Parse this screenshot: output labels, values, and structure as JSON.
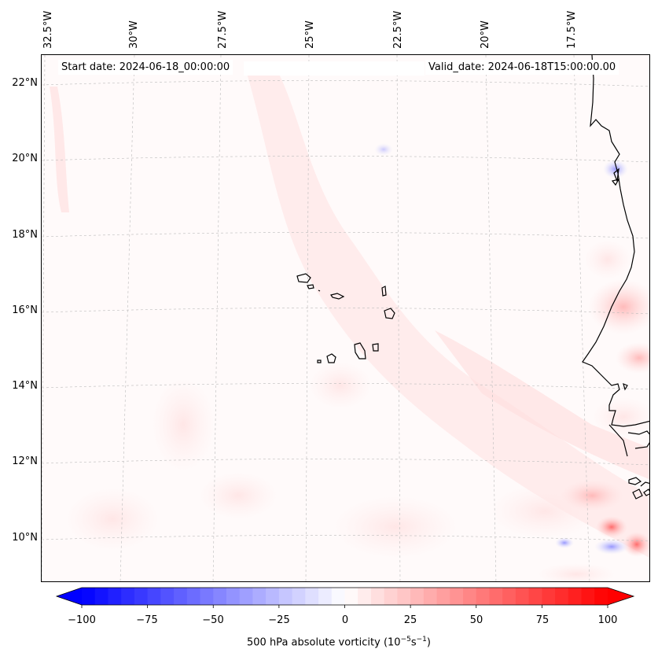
{
  "map": {
    "start_date_text": "Start date: 2024-06-18_00:00:00",
    "valid_date_text": "Valid_date: 2024-06-18T15:00:00.00",
    "lon_labels": [
      "32.5°W",
      "30°W",
      "27.5°W",
      "25°W",
      "22.5°W",
      "20°W",
      "17.5°W"
    ],
    "lat_labels": [
      "22°N",
      "20°N",
      "18°N",
      "16°N",
      "14°N",
      "12°N",
      "10°N"
    ],
    "colorbar": {
      "label": "500 hPa absolute vorticity (10",
      "label_exp1": "−5",
      "label_mid": "s",
      "label_exp2": "−1",
      "label_end": ")",
      "tick_labels": [
        "−100",
        "−75",
        "−50",
        "−25",
        "0",
        "25",
        "50",
        "75",
        "100"
      ],
      "min": -100,
      "max": 100,
      "levels": 40,
      "low_color": "#0000ff",
      "mid_color": "#ffffff",
      "high_color": "#ff0000"
    }
  }
}
